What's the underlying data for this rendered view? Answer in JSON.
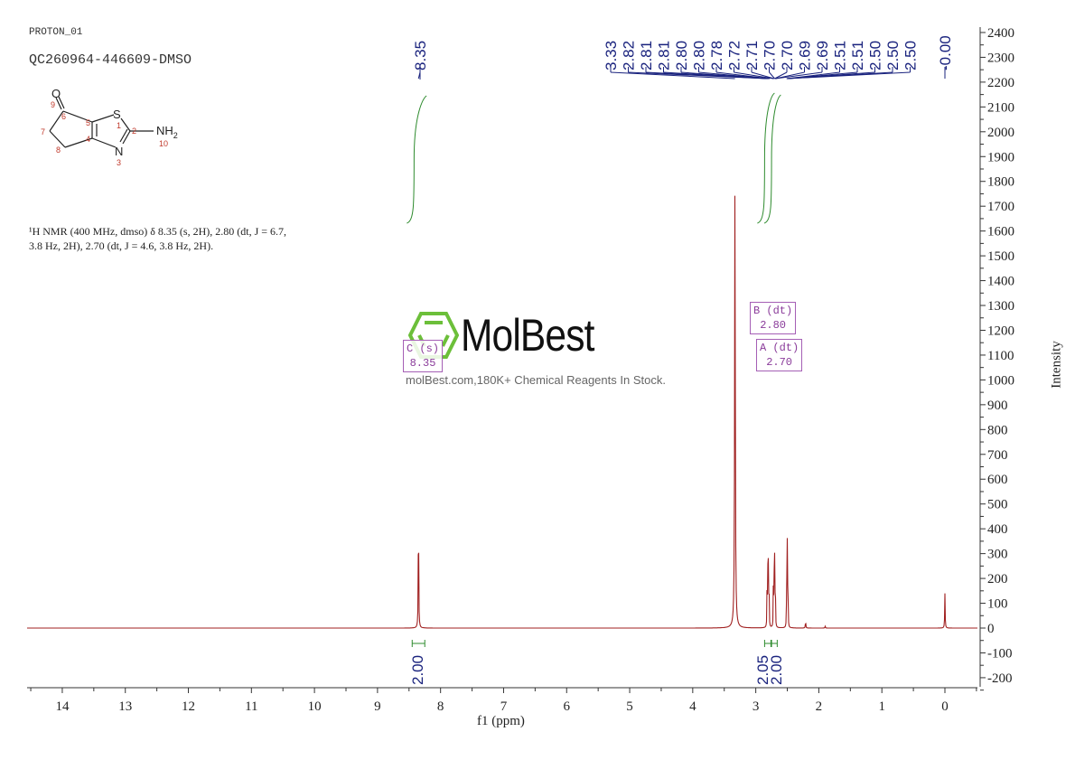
{
  "header": {
    "experiment": "PROTON_01",
    "sample_id": "QC260964-446609-DMSO"
  },
  "structure": {
    "atoms": [
      "O",
      "S",
      "N",
      "NH2"
    ],
    "atom_numbers": [
      "1",
      "2",
      "3",
      "4",
      "5",
      "6",
      "7",
      "8",
      "9",
      "10"
    ]
  },
  "nmr_description": {
    "line1": "¹H NMR (400 MHz, dmso) δ 8.35 (s, 2H), 2.80 (dt, J = 6.7,",
    "line2": "3.8 Hz, 2H), 2.70 (dt, J = 4.6, 3.8 Hz, 2H)."
  },
  "watermark": {
    "brand": "MolBest",
    "tagline": "molBest.com,180K+ Chemical Reagents In Stock.",
    "logo_color": "#6cbf3a"
  },
  "colors": {
    "spectrum": "#a02020",
    "peak_labels": "#1a237e",
    "integral": "#2e8b2e",
    "multiplet_box": "#a55fb5",
    "axis": "#333333"
  },
  "multiplets": [
    {
      "label": "C (s)",
      "shift": "8.35"
    },
    {
      "label": "B (dt)",
      "shift": "2.80"
    },
    {
      "label": "A (dt)",
      "shift": "2.70"
    }
  ],
  "chart_data": {
    "type": "line",
    "title": "QC260964-446609-DMSO",
    "xlabel": "f1 (ppm)",
    "ylabel": "Intensity",
    "xlim": [
      14.5,
      -0.5
    ],
    "ylim": [
      -200,
      2400
    ],
    "x_ticks": [
      "14",
      "13",
      "12",
      "11",
      "10",
      "9",
      "8",
      "7",
      "6",
      "5",
      "4",
      "3",
      "2",
      "1",
      "0"
    ],
    "y_ticks": [
      "2400",
      "2300",
      "2200",
      "2100",
      "2000",
      "1900",
      "1800",
      "1700",
      "1600",
      "1500",
      "1400",
      "1300",
      "1200",
      "1100",
      "1000",
      "900",
      "800",
      "700",
      "600",
      "500",
      "400",
      "300",
      "200",
      "100",
      "0",
      "-100",
      "-200"
    ],
    "grid": false,
    "peak_labels": [
      "8.35",
      "3.33",
      "2.82",
      "2.81",
      "2.81",
      "2.80",
      "2.80",
      "2.78",
      "2.72",
      "2.71",
      "2.70",
      "2.70",
      "2.69",
      "2.69",
      "2.51",
      "2.51",
      "2.50",
      "2.50",
      "2.50",
      "-0.00"
    ],
    "peaks": [
      {
        "ppm": 8.35,
        "intensity": 540
      },
      {
        "ppm": 3.33,
        "intensity": 1840
      },
      {
        "ppm": 2.81,
        "intensity": 480
      },
      {
        "ppm": 2.71,
        "intensity": 480
      },
      {
        "ppm": 2.5,
        "intensity": 490
      },
      {
        "ppm": 2.21,
        "intensity": 30
      },
      {
        "ppm": 1.9,
        "intensity": 8
      },
      {
        "ppm": 0.0,
        "intensity": 140
      }
    ],
    "integrals": [
      {
        "range": [
          8.45,
          8.25
        ],
        "value": "2.00"
      },
      {
        "range": [
          2.86,
          2.76
        ],
        "value": "2.05"
      },
      {
        "range": [
          2.75,
          2.66
        ],
        "value": "2.00"
      }
    ]
  }
}
